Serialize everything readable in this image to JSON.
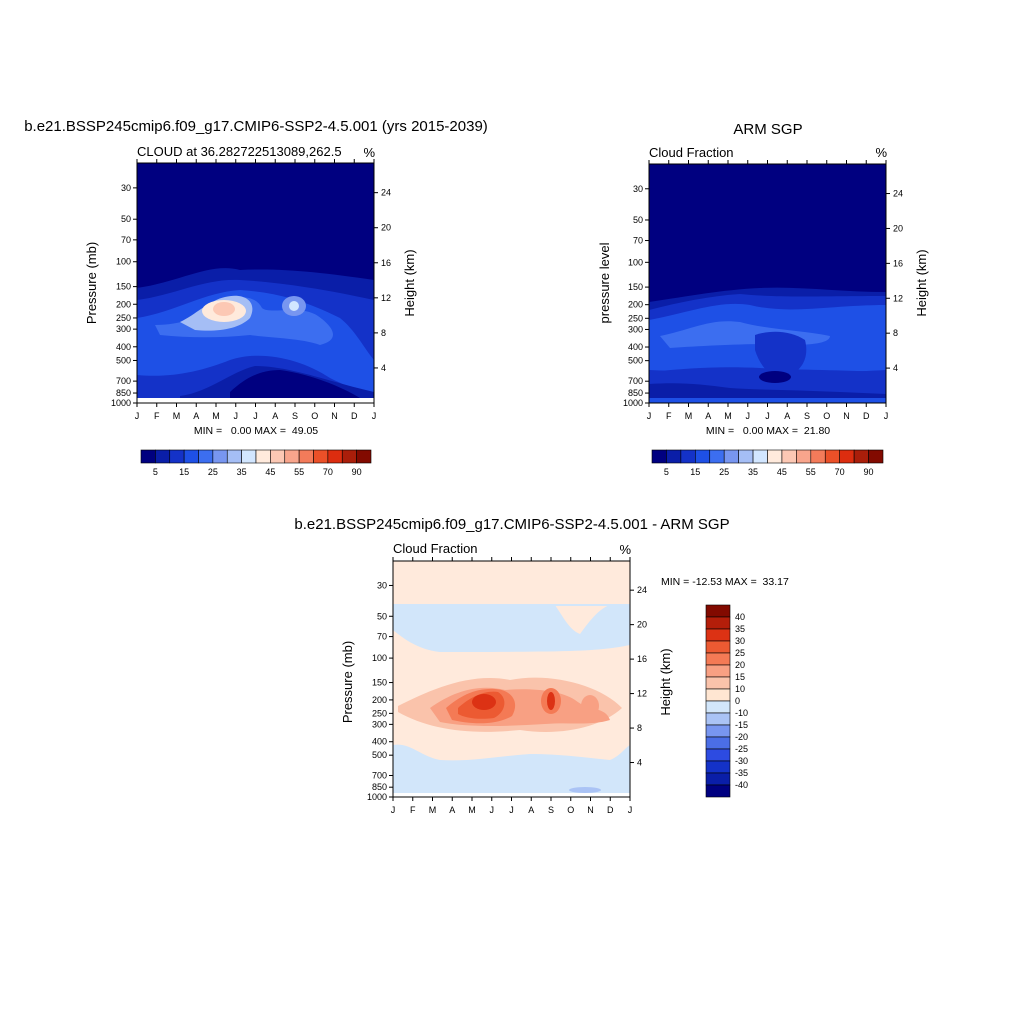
{
  "chart_data": [
    {
      "type": "heatmap",
      "title": "b.e21.BSSP245cmip6.f09_g17.CMIP6-SSP2-4.5.001 (yrs 2015-2039)",
      "subtitle": "CLOUD at 36.282722513089,262.5",
      "units": "%",
      "ylabel": "Pressure (mb)",
      "y2label": "Height (km)",
      "x_ticks": [
        "J",
        "F",
        "M",
        "A",
        "M",
        "J",
        "J",
        "A",
        "S",
        "O",
        "N",
        "D",
        "J"
      ],
      "y_ticks": [
        30,
        50,
        70,
        100,
        150,
        200,
        250,
        300,
        400,
        500,
        700,
        850,
        1000
      ],
      "y2_ticks": [
        4,
        8,
        12,
        16,
        20,
        24
      ],
      "min_max_text": "MIN =   0.00 MAX =  49.05",
      "min": 0.0,
      "max": 49.05,
      "colorbar_ticks": [
        "5",
        "15",
        "25",
        "35",
        "45",
        "55",
        "70",
        "90"
      ],
      "colorbar_orientation": "horizontal"
    },
    {
      "type": "heatmap",
      "title": "ARM SGP",
      "subtitle": "Cloud Fraction",
      "units": "%",
      "ylabel": "pressure level",
      "y2label": "Height (km)",
      "x_ticks": [
        "J",
        "F",
        "M",
        "A",
        "M",
        "J",
        "J",
        "A",
        "S",
        "O",
        "N",
        "D",
        "J"
      ],
      "y_ticks": [
        30,
        50,
        70,
        100,
        150,
        200,
        250,
        300,
        400,
        500,
        700,
        850,
        1000
      ],
      "y2_ticks": [
        4,
        8,
        12,
        16,
        20,
        24
      ],
      "min_max_text": "MIN =   0.00 MAX =  21.80",
      "min": 0.0,
      "max": 21.8,
      "colorbar_ticks": [
        "5",
        "15",
        "25",
        "35",
        "45",
        "55",
        "70",
        "90"
      ],
      "colorbar_orientation": "horizontal"
    },
    {
      "type": "heatmap",
      "title": "b.e21.BSSP245cmip6.f09_g17.CMIP6-SSP2-4.5.001 - ARM SGP",
      "subtitle": "Cloud Fraction",
      "units": "%",
      "ylabel": "Pressure (mb)",
      "y2label": "Height (km)",
      "x_ticks": [
        "J",
        "F",
        "M",
        "A",
        "M",
        "J",
        "J",
        "A",
        "S",
        "O",
        "N",
        "D",
        "J"
      ],
      "y_ticks": [
        30,
        50,
        70,
        100,
        150,
        200,
        250,
        300,
        400,
        500,
        700,
        850,
        1000
      ],
      "y2_ticks": [
        4,
        8,
        12,
        16,
        20,
        24
      ],
      "min_max_text": "MIN = -12.53 MAX =  33.17",
      "min": -12.53,
      "max": 33.17,
      "colorbar_ticks": [
        "40",
        "35",
        "30",
        "25",
        "20",
        "15",
        "10",
        "0",
        "-10",
        "-15",
        "-20",
        "-25",
        "-30",
        "-35",
        "-40"
      ],
      "colorbar_orientation": "vertical"
    }
  ],
  "colors": {
    "seq": [
      "#000080",
      "#0a1ea8",
      "#1432c8",
      "#1e50e6",
      "#3c6ef0",
      "#7896f0",
      "#a5bef5",
      "#d2e6ff",
      "#ffeadc",
      "#fcc8b4",
      "#f8a58c",
      "#f37b5a",
      "#eb5028",
      "#dc2d0f",
      "#aa1e0a",
      "#820a00"
    ],
    "diff": [
      "#820a00",
      "#b41e0a",
      "#dc3214",
      "#ec5a32",
      "#f47a55",
      "#f8a083",
      "#fac3ab",
      "#ffe6d2",
      "#d2e6fa",
      "#aac3f5",
      "#7896f0",
      "#4b6ee6",
      "#2d4be1",
      "#1432c8",
      "#0a1ea8",
      "#000080"
    ]
  }
}
